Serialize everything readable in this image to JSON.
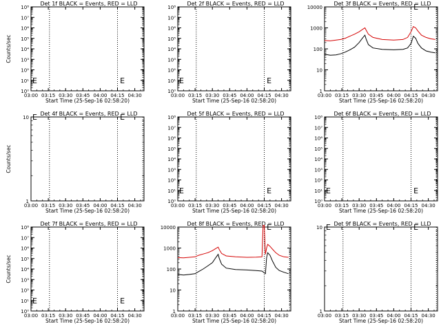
{
  "panel_xlabel": "Start Time (25-Sep-16 02:58:20)",
  "panel_ylabel": "Counts/sec",
  "x_ticks": [
    "03:00",
    "03:15",
    "03:30",
    "03:45",
    "04:00",
    "04:15",
    "04:30"
  ],
  "colors": {
    "events": "#000000",
    "lld": "#d40000",
    "axes": "#000000",
    "background": "#ffffff"
  },
  "chart_data": [
    {
      "type": "line",
      "title": "Det 1f BLACK = Events, RED = LLD",
      "xlabel": "Start Time (25-Sep-16 02:58:20)",
      "ylabel": "Counts/sec",
      "x_range": [
        "03:00",
        "04:38"
      ],
      "y_log": true,
      "y_range": [
        1,
        100000000
      ],
      "y_ticks": [
        "10⁰",
        "10¹",
        "10²",
        "10³",
        "10⁴",
        "10⁵",
        "10⁶",
        "10⁷",
        "10⁸"
      ],
      "x_ticks": [
        "03:00",
        "03:15",
        "03:30",
        "03:45",
        "04:00",
        "04:15",
        "04:30"
      ],
      "vlines": [
        "03:16",
        "04:15",
        "04:37"
      ],
      "markers": [
        {
          "label": "E",
          "x": "03:00",
          "y": "10¹"
        },
        {
          "label": "E",
          "x": "04:16",
          "y": "10¹"
        }
      ],
      "series": []
    },
    {
      "type": "line",
      "title": "Det 2f BLACK = Events, RED = LLD",
      "xlabel": "Start Time (25-Sep-16 02:58:20)",
      "ylabel": "",
      "x_range": [
        "03:00",
        "04:38"
      ],
      "y_log": true,
      "y_range": [
        1,
        100000000
      ],
      "y_ticks": [
        "10⁰",
        "10¹",
        "10²",
        "10³",
        "10⁴",
        "10⁵",
        "10⁶",
        "10⁷",
        "10⁸"
      ],
      "x_ticks": [
        "03:00",
        "03:15",
        "03:30",
        "03:45",
        "04:00",
        "04:15",
        "04:30"
      ],
      "vlines": [
        "03:16",
        "04:15",
        "04:37"
      ],
      "markers": [
        {
          "label": "E",
          "x": "03:00",
          "y": "10¹"
        },
        {
          "label": "E",
          "x": "04:16",
          "y": "10¹"
        }
      ],
      "series": []
    },
    {
      "type": "line",
      "title": "Det 3f BLACK = Events, RED = LLD",
      "xlabel": "Start Time (25-Sep-16 02:58:20)",
      "ylabel": "",
      "x_range": [
        "03:00",
        "04:38"
      ],
      "y_log": true,
      "y_range": [
        1,
        10000
      ],
      "y_ticks": [
        "1",
        "10",
        "100",
        "1000",
        "10000"
      ],
      "x_ticks": [
        "03:00",
        "03:15",
        "03:30",
        "03:45",
        "04:00",
        "04:15",
        "04:30"
      ],
      "vlines": [
        "03:16",
        "04:15",
        "04:37"
      ],
      "markers": [
        {
          "label": "E",
          "x": "04:16",
          "y": "10000"
        }
      ],
      "series": [
        {
          "color": "#d40000",
          "x": [
            "03:00",
            "03:05",
            "03:10",
            "03:14",
            "03:18",
            "03:22",
            "03:26",
            "03:30",
            "03:33",
            "03:35",
            "03:36",
            "03:38",
            "03:42",
            "03:50",
            "04:00",
            "04:08",
            "04:12",
            "04:15",
            "04:17",
            "04:19",
            "04:21",
            "04:24",
            "04:28",
            "04:32",
            "04:36"
          ],
          "y": [
            250,
            240,
            260,
            280,
            320,
            400,
            500,
            650,
            850,
            1000,
            800,
            500,
            350,
            280,
            260,
            280,
            350,
            650,
            1150,
            1000,
            700,
            450,
            350,
            300,
            280
          ]
        },
        {
          "color": "#000000",
          "x": [
            "03:00",
            "03:05",
            "03:10",
            "03:14",
            "03:18",
            "03:22",
            "03:26",
            "03:30",
            "03:33",
            "03:35",
            "03:36",
            "03:38",
            "03:42",
            "03:50",
            "04:00",
            "04:08",
            "04:12",
            "04:15",
            "04:17",
            "04:19",
            "04:21",
            "04:24",
            "04:28",
            "04:32",
            "04:36"
          ],
          "y": [
            55,
            50,
            52,
            58,
            70,
            90,
            120,
            200,
            330,
            450,
            300,
            160,
            110,
            95,
            90,
            95,
            110,
            180,
            400,
            320,
            180,
            110,
            80,
            70,
            65
          ]
        }
      ]
    },
    {
      "type": "line",
      "title": "Det 4f BLACK = Events, RED = LLD",
      "xlabel": "Start Time (25-Sep-16 02:58:20)",
      "ylabel": "Counts/sec",
      "x_range": [
        "03:00",
        "04:38"
      ],
      "y_log": true,
      "y_range": [
        1,
        10
      ],
      "y_ticks": [
        "1",
        "10"
      ],
      "x_ticks": [
        "03:00",
        "03:15",
        "03:30",
        "03:45",
        "04:00",
        "04:15",
        "04:30"
      ],
      "vlines": [
        "03:16",
        "04:15",
        "04:37"
      ],
      "markers": [
        {
          "label": "E",
          "x": "03:00",
          "y": "10"
        },
        {
          "label": "E",
          "x": "04:16",
          "y": "10"
        }
      ],
      "series": []
    },
    {
      "type": "line",
      "title": "Det 5f BLACK = Events, RED = LLD",
      "xlabel": "Start Time (25-Sep-16 02:58:20)",
      "ylabel": "",
      "x_range": [
        "03:00",
        "04:38"
      ],
      "y_log": true,
      "y_range": [
        1,
        100000000
      ],
      "y_ticks": [
        "10⁰",
        "10¹",
        "10²",
        "10³",
        "10⁴",
        "10⁵",
        "10⁶",
        "10⁷",
        "10⁸"
      ],
      "x_ticks": [
        "03:00",
        "03:15",
        "03:30",
        "03:45",
        "04:00",
        "04:15",
        "04:30"
      ],
      "vlines": [
        "03:16",
        "04:15",
        "04:37"
      ],
      "markers": [
        {
          "label": "E",
          "x": "03:00",
          "y": "10¹"
        },
        {
          "label": "E",
          "x": "04:16",
          "y": "10¹"
        }
      ],
      "series": []
    },
    {
      "type": "line",
      "title": "Det 6f BLACK = Events, RED = LLD",
      "xlabel": "Start Time (25-Sep-16 02:58:20)",
      "ylabel": "",
      "x_range": [
        "03:00",
        "04:38"
      ],
      "y_log": true,
      "y_range": [
        1,
        100000000
      ],
      "y_ticks": [
        "10⁰",
        "10¹",
        "10²",
        "10³",
        "10⁴",
        "10⁵",
        "10⁶",
        "10⁷",
        "10⁸"
      ],
      "x_ticks": [
        "03:00",
        "03:15",
        "03:30",
        "03:45",
        "04:00",
        "04:15",
        "04:30"
      ],
      "vlines": [
        "03:16",
        "04:15",
        "04:37"
      ],
      "markers": [
        {
          "label": "E",
          "x": "03:00",
          "y": "10¹"
        },
        {
          "label": "E",
          "x": "04:16",
          "y": "10¹"
        }
      ],
      "series": []
    },
    {
      "type": "line",
      "title": "Det 7f BLACK = Events, RED = LLD",
      "xlabel": "Start Time (25-Sep-16 02:58:20)",
      "ylabel": "Counts/sec",
      "x_range": [
        "03:00",
        "04:38"
      ],
      "y_log": true,
      "y_range": [
        1,
        100000000
      ],
      "y_ticks": [
        "10⁰",
        "10¹",
        "10²",
        "10³",
        "10⁴",
        "10⁵",
        "10⁶",
        "10⁷",
        "10⁸"
      ],
      "x_ticks": [
        "03:00",
        "03:15",
        "03:30",
        "03:45",
        "04:00",
        "04:15",
        "04:30"
      ],
      "vlines": [
        "03:16",
        "04:15",
        "04:37"
      ],
      "markers": [
        {
          "label": "E",
          "x": "03:00",
          "y": "10¹"
        },
        {
          "label": "E",
          "x": "04:16",
          "y": "10¹"
        }
      ],
      "series": []
    },
    {
      "type": "line",
      "title": "Det 8f BLACK = Events, RED = LLD",
      "xlabel": "Start Time (25-Sep-16 02:58:20)",
      "ylabel": "",
      "x_range": [
        "03:00",
        "04:38"
      ],
      "y_log": true,
      "y_range": [
        1,
        10000
      ],
      "y_ticks": [
        "1",
        "10",
        "100",
        "1000",
        "10000"
      ],
      "x_ticks": [
        "03:00",
        "03:15",
        "03:30",
        "03:45",
        "04:00",
        "04:15",
        "04:30"
      ],
      "vlines": [
        "03:16",
        "04:15",
        "04:37"
      ],
      "markers": [
        {
          "label": "E",
          "x": "04:16",
          "y": "10000"
        }
      ],
      "series": [
        {
          "color": "#d40000",
          "x": [
            "03:00",
            "03:05",
            "03:10",
            "03:15",
            "03:18",
            "03:22",
            "03:26",
            "03:30",
            "03:33",
            "03:35",
            "03:36",
            "03:38",
            "03:42",
            "03:50",
            "04:00",
            "04:08",
            "04:13",
            "04:14",
            "04:15",
            "04:16",
            "04:17",
            "04:18",
            "04:20",
            "04:22",
            "04:25",
            "04:28",
            "04:32",
            "04:36"
          ],
          "y": [
            350,
            340,
            360,
            380,
            450,
            520,
            600,
            750,
            950,
            1100,
            850,
            550,
            420,
            380,
            360,
            370,
            380,
            12000,
            12000,
            500,
            1000,
            1500,
            1200,
            900,
            600,
            450,
            380,
            360
          ]
        },
        {
          "color": "#000000",
          "x": [
            "03:00",
            "03:05",
            "03:10",
            "03:15",
            "03:18",
            "03:22",
            "03:26",
            "03:30",
            "03:33",
            "03:35",
            "03:36",
            "03:38",
            "03:42",
            "03:50",
            "04:00",
            "04:08",
            "04:13",
            "04:16",
            "04:17",
            "04:18",
            "04:20",
            "04:22",
            "04:25",
            "04:28",
            "04:32",
            "04:36"
          ],
          "y": [
            55,
            52,
            55,
            60,
            75,
            100,
            140,
            200,
            350,
            500,
            320,
            170,
            110,
            95,
            90,
            85,
            80,
            60,
            350,
            600,
            450,
            250,
            120,
            85,
            70,
            60
          ]
        }
      ]
    },
    {
      "type": "line",
      "title": "Det 9f BLACK = Events, RED = LLD",
      "xlabel": "Start Time (25-Sep-16 02:58:20)",
      "ylabel": "",
      "x_range": [
        "03:00",
        "04:38"
      ],
      "y_log": true,
      "y_range": [
        1,
        10
      ],
      "y_ticks": [
        "1",
        "10"
      ],
      "x_ticks": [
        "03:00",
        "03:15",
        "03:30",
        "03:45",
        "04:00",
        "04:15",
        "04:30"
      ],
      "vlines": [
        "03:16",
        "04:15",
        "04:37"
      ],
      "markers": [
        {
          "label": "E",
          "x": "03:00",
          "y": "10"
        },
        {
          "label": "E",
          "x": "04:16",
          "y": "10"
        }
      ],
      "series": []
    }
  ]
}
